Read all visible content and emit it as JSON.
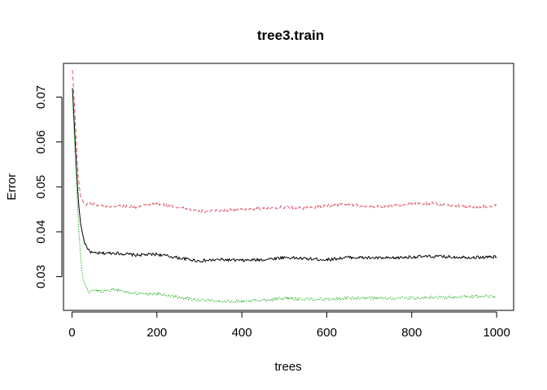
{
  "chart_data": {
    "type": "line",
    "title": "tree3.train",
    "xlabel": "trees",
    "ylabel": "Error",
    "xlim": [
      -20,
      1040
    ],
    "ylim": [
      0.0225,
      0.0775
    ],
    "x_ticks": [
      0,
      200,
      400,
      600,
      800,
      1000
    ],
    "y_ticks": [
      0.03,
      0.04,
      0.05,
      0.06,
      0.07
    ],
    "grid": false,
    "legend": "none",
    "series": [
      {
        "color": "#000000",
        "dash": "solid",
        "points": [
          [
            1,
            0.072
          ],
          [
            5,
            0.065
          ],
          [
            10,
            0.055
          ],
          [
            15,
            0.047
          ],
          [
            20,
            0.042
          ],
          [
            25,
            0.0395
          ],
          [
            30,
            0.0375
          ],
          [
            40,
            0.0358
          ],
          [
            50,
            0.0352
          ],
          [
            70,
            0.0352
          ],
          [
            100,
            0.0353
          ],
          [
            150,
            0.0348
          ],
          [
            200,
            0.035
          ],
          [
            250,
            0.0342
          ],
          [
            300,
            0.0335
          ],
          [
            350,
            0.0338
          ],
          [
            400,
            0.0336
          ],
          [
            450,
            0.0338
          ],
          [
            500,
            0.0343
          ],
          [
            550,
            0.034
          ],
          [
            600,
            0.0338
          ],
          [
            650,
            0.0343
          ],
          [
            700,
            0.0342
          ],
          [
            750,
            0.0341
          ],
          [
            800,
            0.0344
          ],
          [
            850,
            0.0345
          ],
          [
            900,
            0.0344
          ],
          [
            950,
            0.0343
          ],
          [
            1000,
            0.0344
          ]
        ]
      },
      {
        "color": "#DF536B",
        "dash": "dashed",
        "points": [
          [
            1,
            0.076
          ],
          [
            5,
            0.07
          ],
          [
            10,
            0.06
          ],
          [
            15,
            0.052
          ],
          [
            20,
            0.048
          ],
          [
            30,
            0.046
          ],
          [
            40,
            0.0465
          ],
          [
            60,
            0.046
          ],
          [
            80,
            0.0455
          ],
          [
            100,
            0.0458
          ],
          [
            150,
            0.0455
          ],
          [
            200,
            0.0462
          ],
          [
            250,
            0.0455
          ],
          [
            300,
            0.0445
          ],
          [
            350,
            0.0448
          ],
          [
            400,
            0.045
          ],
          [
            450,
            0.0452
          ],
          [
            500,
            0.0455
          ],
          [
            550,
            0.0452
          ],
          [
            600,
            0.0458
          ],
          [
            650,
            0.0462
          ],
          [
            700,
            0.0455
          ],
          [
            750,
            0.0458
          ],
          [
            800,
            0.0462
          ],
          [
            850,
            0.0463
          ],
          [
            900,
            0.0458
          ],
          [
            950,
            0.0456
          ],
          [
            1000,
            0.0458
          ]
        ]
      },
      {
        "color": "#22B022",
        "dash": "dotted",
        "points": [
          [
            1,
            0.07
          ],
          [
            5,
            0.062
          ],
          [
            10,
            0.052
          ],
          [
            15,
            0.042
          ],
          [
            20,
            0.035
          ],
          [
            25,
            0.03
          ],
          [
            30,
            0.0285
          ],
          [
            40,
            0.0265
          ],
          [
            50,
            0.027
          ],
          [
            70,
            0.0268
          ],
          [
            100,
            0.0272
          ],
          [
            150,
            0.0262
          ],
          [
            200,
            0.0262
          ],
          [
            250,
            0.0255
          ],
          [
            300,
            0.0248
          ],
          [
            350,
            0.0246
          ],
          [
            400,
            0.0245
          ],
          [
            450,
            0.0248
          ],
          [
            500,
            0.0252
          ],
          [
            550,
            0.025
          ],
          [
            600,
            0.025
          ],
          [
            650,
            0.0252
          ],
          [
            700,
            0.0252
          ],
          [
            750,
            0.0252
          ],
          [
            800,
            0.0252
          ],
          [
            850,
            0.0254
          ],
          [
            900,
            0.0254
          ],
          [
            950,
            0.0256
          ],
          [
            1000,
            0.0256
          ]
        ]
      }
    ]
  }
}
